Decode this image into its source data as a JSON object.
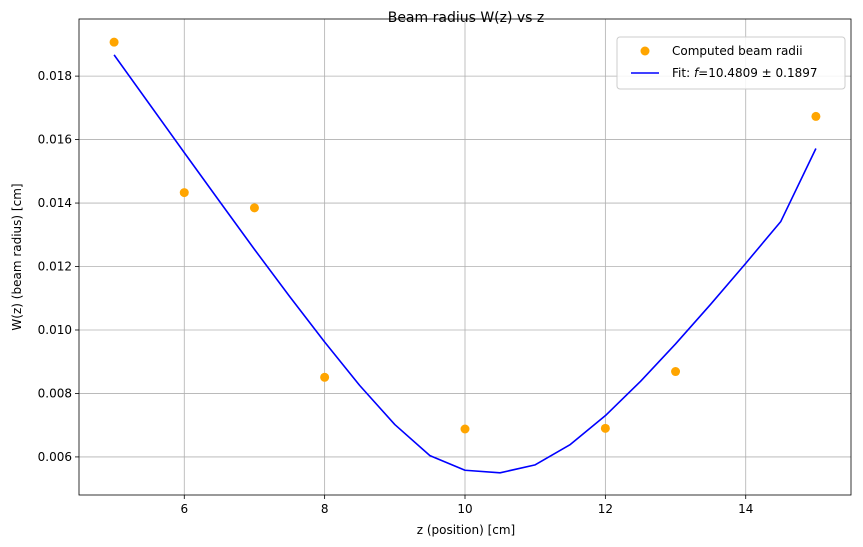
{
  "chart_data": {
    "type": "scatter",
    "title": "Beam radius W(z) vs z",
    "xlabel": "z (position) [cm]",
    "ylabel": "W(z) (beam radius) [cm]",
    "xlim": [
      4.5,
      15.5
    ],
    "ylim": [
      0.0048,
      0.0198
    ],
    "xticks": [
      6,
      8,
      10,
      12,
      14
    ],
    "xtick_labels": [
      "6",
      "8",
      "10",
      "12",
      "14"
    ],
    "yticks": [
      0.006,
      0.008,
      0.01,
      0.012,
      0.014,
      0.016,
      0.018
    ],
    "ytick_labels": [
      "0.006",
      "0.008",
      "0.010",
      "0.012",
      "0.014",
      "0.016",
      "0.018"
    ],
    "grid": true,
    "legend_position": "top-right",
    "series": [
      {
        "name": "Computed beam radii",
        "kind": "scatter",
        "color": "#ffa500",
        "x": [
          5,
          6,
          7,
          8,
          10,
          12,
          13,
          15
        ],
        "y": [
          0.01907,
          0.01433,
          0.01385,
          0.00851,
          0.00688,
          0.0069,
          0.00869,
          0.01673
        ]
      },
      {
        "name": "Fit: f=10.4809 ± 0.1897",
        "name_prefix": "Fit: ",
        "name_italic": "f",
        "name_suffix": "=10.4809 ± 0.1897",
        "kind": "line",
        "color": "#0000ff",
        "x": [
          5.0,
          5.5,
          6.0,
          6.5,
          7.0,
          7.5,
          8.0,
          8.5,
          9.0,
          9.5,
          10.0,
          10.5,
          11.0,
          11.5,
          12.0,
          12.5,
          13.0,
          13.5,
          14.0,
          14.5,
          15.0
        ],
        "y": [
          0.01867,
          0.01713,
          0.01559,
          0.01406,
          0.01254,
          0.01106,
          0.00962,
          0.00825,
          0.00702,
          0.00604,
          0.00558,
          0.0055,
          0.00575,
          0.00639,
          0.0073,
          0.00838,
          0.00956,
          0.01081,
          0.0121,
          0.01342,
          0.01572
        ]
      }
    ]
  }
}
